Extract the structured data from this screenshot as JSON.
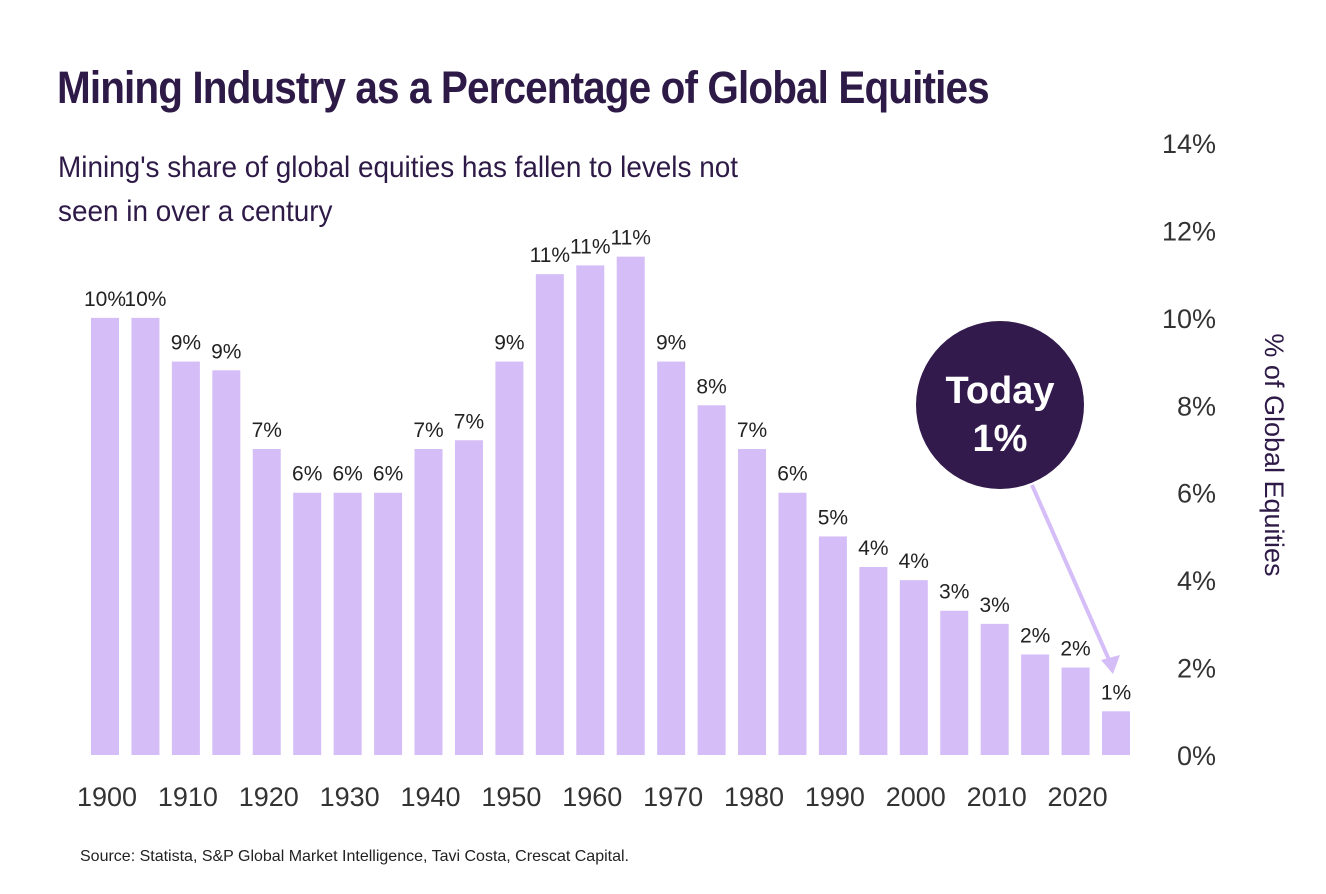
{
  "title": "Mining Industry as a Percentage of Global Equities",
  "subtitle": "Mining's share of global equities has fallen to levels not seen in over a century",
  "source": "Source: Statista, S&P Global Market Intelligence, Tavi Costa, Crescat Capital.",
  "callout": {
    "line1": "Today",
    "line2": "1%",
    "color": "#331a4d"
  },
  "chart_data": {
    "type": "bar",
    "categories": [
      1900,
      1905,
      1910,
      1915,
      1920,
      1925,
      1930,
      1935,
      1940,
      1945,
      1950,
      1955,
      1960,
      1965,
      1970,
      1975,
      1980,
      1985,
      1990,
      1995,
      2000,
      2005,
      2010,
      2015,
      2020,
      2025
    ],
    "values": [
      10,
      10,
      9,
      8.8,
      7,
      6,
      6,
      6,
      7,
      7.2,
      9,
      11,
      11.2,
      11.4,
      9,
      8,
      7,
      6,
      5,
      4.3,
      4,
      3.3,
      3,
      2.3,
      2,
      1
    ],
    "data_labels": [
      "10%",
      "10%",
      "9%",
      "9%",
      "7%",
      "6%",
      "6%",
      "6%",
      "7%",
      "7%",
      "9%",
      "11%",
      "11%",
      "11%",
      "9%",
      "8%",
      "7%",
      "6%",
      "5%",
      "4%",
      "4%",
      "3%",
      "3%",
      "2%",
      "2%",
      "1%"
    ],
    "x_tick_labels": [
      "1900",
      "1910",
      "1920",
      "1930",
      "1940",
      "1950",
      "1960",
      "1970",
      "1980",
      "1990",
      "2000",
      "2010",
      "2020"
    ],
    "y_tick_labels": [
      "0%",
      "2%",
      "4%",
      "6%",
      "8%",
      "10%",
      "12%",
      "14%"
    ],
    "ylabel": "% of Global Equities",
    "ylim": [
      0,
      14
    ],
    "y_axis_position": "right",
    "grid": false,
    "bar_color": "#d5bdf7"
  }
}
